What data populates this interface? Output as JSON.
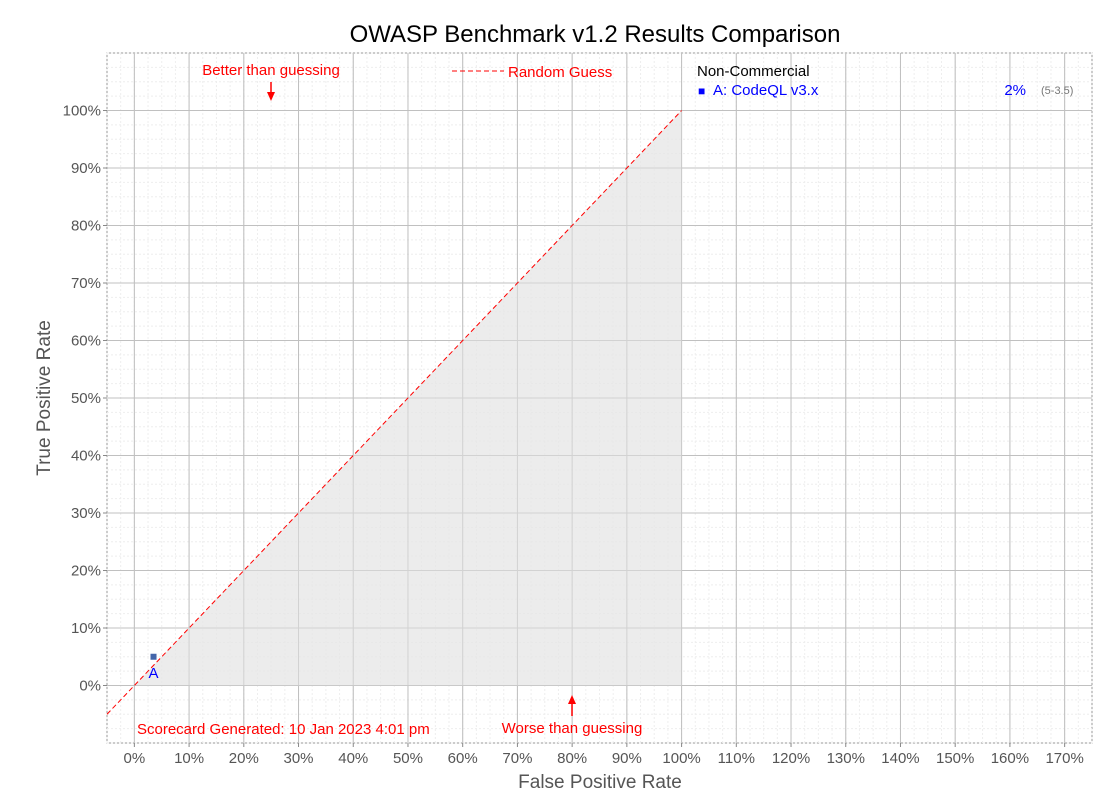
{
  "chart_data": {
    "type": "scatter",
    "title": "OWASP Benchmark v1.2 Results Comparison",
    "xlabel": "False Positive Rate",
    "ylabel": "True Positive Rate",
    "xlim": [
      -5,
      175
    ],
    "ylim": [
      -10,
      110
    ],
    "x_ticks": [
      0,
      10,
      20,
      30,
      40,
      50,
      60,
      70,
      80,
      90,
      100,
      110,
      120,
      130,
      140,
      150,
      160,
      170
    ],
    "y_ticks": [
      0,
      10,
      20,
      30,
      40,
      50,
      60,
      70,
      80,
      90,
      100
    ],
    "tick_suffix": "%",
    "grid": true,
    "random_guess_line": {
      "label": "Random Guess",
      "color": "#ff0000"
    },
    "points": [
      {
        "label": "A",
        "x": 3.5,
        "y": 5,
        "color": "#4466aa"
      }
    ],
    "annotations": {
      "better": "Better than guessing",
      "worse": "Worse than guessing",
      "generated": "Scorecard Generated: 10 Jan 2023 4:01 pm"
    },
    "legend": {
      "heading": "Non-Commercial",
      "entries": [
        {
          "marker": "■",
          "text": "A: CodeQL v3.x",
          "score": "2%",
          "counts": "(5-3.5)"
        }
      ]
    }
  }
}
